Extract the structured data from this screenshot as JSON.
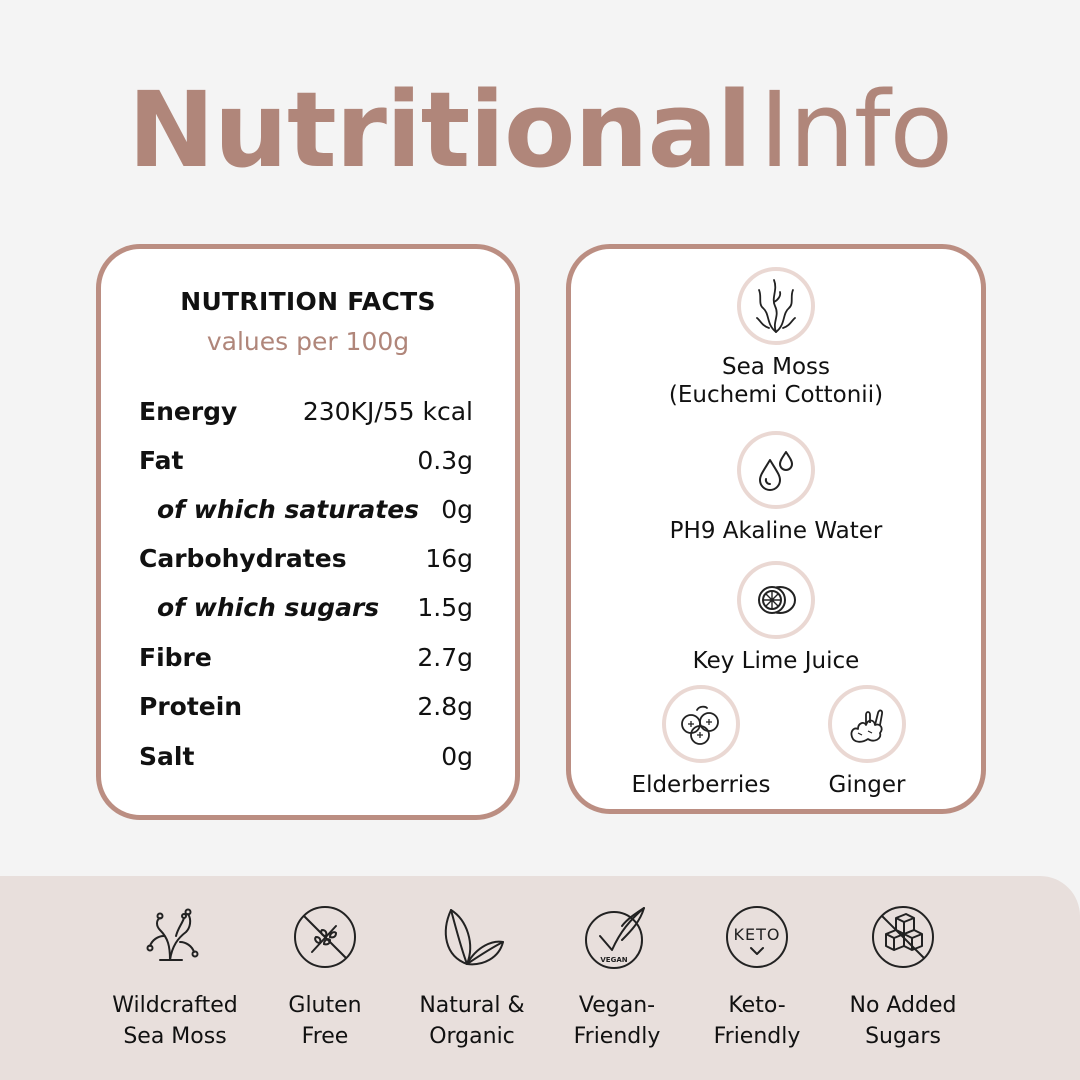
{
  "header": {
    "title_bold": "Nutritional",
    "title_light": "Info"
  },
  "nutrition": {
    "title": "NUTRITION FACTS",
    "subtitle": "values per 100g",
    "rows": [
      {
        "label": "Energy",
        "value": "230KJ/55 kcal"
      },
      {
        "label": "Fat",
        "value": "0.3g"
      },
      {
        "label": "of which saturates",
        "value": "0g"
      },
      {
        "label": "Carbohydrates",
        "value": "16g"
      },
      {
        "label": "of which sugars",
        "value": "1.5g"
      },
      {
        "label": "Fibre",
        "value": "2.7g"
      },
      {
        "label": "Protein",
        "value": "2.8g"
      },
      {
        "label": "Salt",
        "value": "0g"
      }
    ]
  },
  "ingredients": [
    {
      "label_line1": "Sea Moss",
      "label_line2": "(Euchemi Cottonii)",
      "icon": "seaweed-icon"
    },
    {
      "label_line1": "PH9 Akaline Water",
      "icon": "water-drops-icon"
    },
    {
      "label_line1": "Key Lime Juice",
      "icon": "lime-icon"
    },
    {
      "label_line1": "Elderberries",
      "icon": "berries-icon"
    },
    {
      "label_line1": "Ginger",
      "icon": "ginger-icon"
    }
  ],
  "badges": [
    {
      "line1": "Wildcrafted",
      "line2": "Sea Moss",
      "icon": "coral-icon"
    },
    {
      "line1": "Gluten",
      "line2": "Free",
      "icon": "gluten-free-icon"
    },
    {
      "line1": "Natural &",
      "line2": "Organic",
      "icon": "leaves-icon"
    },
    {
      "line1": "Vegan-",
      "line2": "Friendly",
      "icon": "vegan-icon",
      "icon_text": "VEGAN"
    },
    {
      "line1": "Keto-",
      "line2": "Friendly",
      "icon": "keto-icon",
      "icon_text": "KETO"
    },
    {
      "line1": "No Added",
      "line2": "Sugars",
      "icon": "no-sugar-icon"
    }
  ],
  "colors": {
    "accent": "#b0867a",
    "border": "#bb8e82",
    "band": "#e8dfdc",
    "icon_ring": "#ead8d3"
  }
}
